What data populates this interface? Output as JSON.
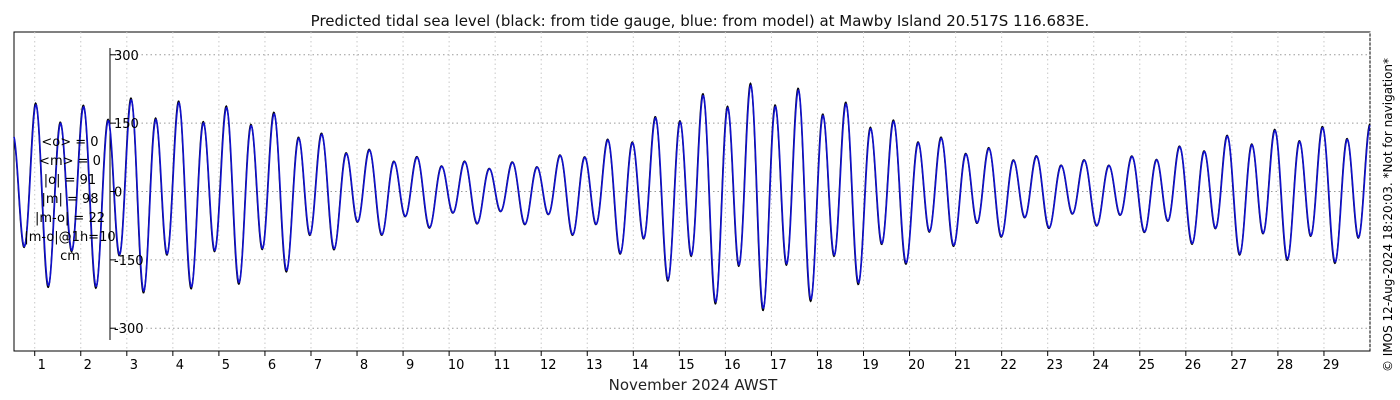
{
  "chart_data": {
    "type": "line",
    "title": "Predicted tidal sea level (black: from tide gauge, blue: from model) at Mawby Island 20.517S 116.683E.",
    "xlabel": "November 2024 AWST",
    "ylabel": "",
    "ylim": [
      -350,
      350
    ],
    "xlim": [
      0.55,
      30
    ],
    "yticks": [
      -300,
      -150,
      0,
      150,
      300
    ],
    "xticks": [
      "1",
      "2",
      "3",
      "4",
      "5",
      "6",
      "7",
      "8",
      "9",
      "10",
      "11",
      "12",
      "13",
      "14",
      "15",
      "16",
      "17",
      "18",
      "19",
      "20",
      "21",
      "22",
      "23",
      "24",
      "25",
      "26",
      "27",
      "28",
      "29"
    ],
    "grid": true,
    "colors": {
      "gauge": "#000000",
      "model": "#1010cc",
      "grid": "#9a9a9a"
    },
    "x_day_start": [
      0.55,
      1,
      2,
      3,
      4,
      5,
      6,
      7,
      8,
      9,
      10,
      11,
      12,
      13,
      14,
      15,
      16,
      17,
      18,
      19,
      20,
      21,
      22,
      23,
      24,
      25,
      26,
      27,
      28,
      29,
      30
    ],
    "amplitude_cm": [
      140,
      170,
      165,
      180,
      175,
      165,
      160,
      120,
      85,
      70,
      60,
      55,
      60,
      85,
      120,
      170,
      205,
      210,
      190,
      160,
      125,
      95,
      80,
      65,
      60,
      70,
      90,
      110,
      120,
      125,
      130
    ],
    "series": [
      {
        "name": "from tide gauge",
        "color": "#000000"
      },
      {
        "name": "from model",
        "color": "#1010cc"
      }
    ],
    "stats": [
      "<o> = 0",
      "<m> = 0",
      "|o| = 91",
      "|m| = 98",
      "|m-o| = 22",
      "|m-o|@1h=10",
      "cm"
    ],
    "credit": "© IMOS 12-Aug-2024 18:20:03. *Not for navigation*"
  }
}
